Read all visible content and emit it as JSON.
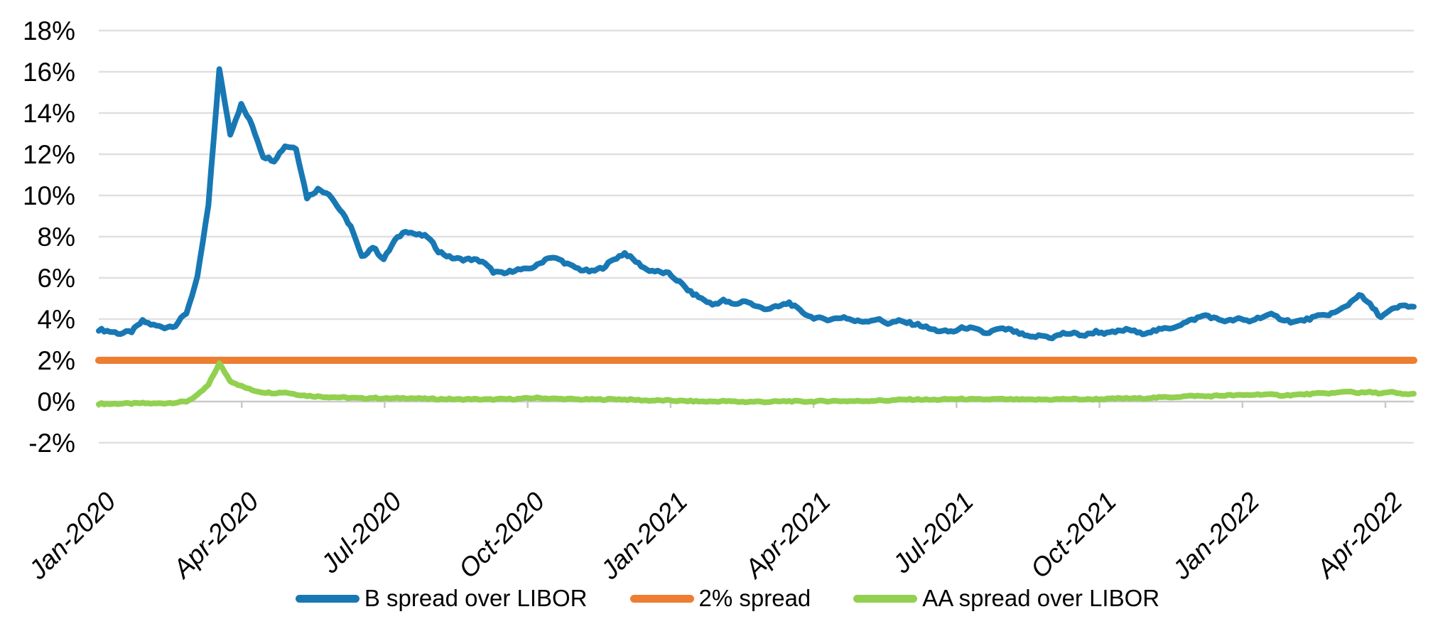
{
  "chart_data": {
    "type": "line",
    "title": "",
    "x_start": "2020-01-03",
    "x_step_days": 7,
    "x_axis": {
      "tick_labels": [
        "Jan-2020",
        "Apr-2020",
        "Jul-2020",
        "Oct-2020",
        "Jan-2021",
        "Apr-2021",
        "Jul-2021",
        "Oct-2021",
        "Jan-2022",
        "Apr-2022"
      ],
      "tick_interval_months": 3,
      "label_rotation_deg": -45,
      "label_style": "italic"
    },
    "y_axis": {
      "tick_labels": [
        "18%",
        "16%",
        "14%",
        "12%",
        "10%",
        "8%",
        "6%",
        "4%",
        "2%",
        "0%",
        "-2%"
      ],
      "min": -2,
      "max": 18,
      "step": 2,
      "format": "percent"
    },
    "grid": "horizontal",
    "legend": {
      "position": "bottom"
    },
    "series": [
      {
        "name": "B spread over LIBOR",
        "color": "#1878B4",
        "values": [
          3.5,
          3.4,
          3.3,
          3.4,
          3.9,
          3.7,
          3.6,
          3.7,
          4.3,
          6.0,
          9.5,
          16.1,
          13.0,
          14.4,
          13.4,
          11.9,
          11.7,
          12.4,
          12.3,
          9.9,
          10.3,
          10.1,
          9.3,
          8.5,
          7.0,
          7.5,
          6.9,
          7.8,
          8.3,
          8.1,
          8.0,
          7.3,
          7.0,
          6.9,
          6.9,
          6.8,
          6.3,
          6.2,
          6.4,
          6.4,
          6.6,
          7.0,
          6.9,
          6.6,
          6.4,
          6.3,
          6.5,
          6.9,
          7.2,
          6.8,
          6.4,
          6.3,
          6.2,
          5.8,
          5.3,
          5.0,
          4.7,
          4.9,
          4.7,
          4.9,
          4.6,
          4.5,
          4.6,
          4.8,
          4.4,
          4.1,
          4.0,
          4.0,
          4.1,
          3.9,
          3.9,
          4.0,
          3.8,
          3.9,
          3.8,
          3.7,
          3.5,
          3.4,
          3.4,
          3.6,
          3.5,
          3.3,
          3.5,
          3.5,
          3.3,
          3.1,
          3.2,
          3.1,
          3.3,
          3.3,
          3.2,
          3.4,
          3.3,
          3.4,
          3.5,
          3.3,
          3.4,
          3.5,
          3.6,
          3.8,
          4.0,
          4.2,
          4.0,
          3.9,
          4.0,
          3.9,
          4.1,
          4.2,
          4.0,
          3.85,
          3.95,
          4.1,
          4.2,
          4.35,
          4.7,
          5.2,
          4.7,
          4.1,
          4.45,
          4.65,
          4.6
        ]
      },
      {
        "name": "2% spread",
        "color": "#ED7D31",
        "constant": 2.0
      },
      {
        "name": "AA spread over LIBOR",
        "color": "#92D050",
        "values": [
          -0.1,
          -0.12,
          -0.1,
          -0.1,
          -0.08,
          -0.1,
          -0.08,
          -0.05,
          0.0,
          0.3,
          0.8,
          1.85,
          1.0,
          0.75,
          0.55,
          0.45,
          0.42,
          0.45,
          0.35,
          0.28,
          0.25,
          0.22,
          0.2,
          0.18,
          0.15,
          0.18,
          0.15,
          0.15,
          0.18,
          0.15,
          0.13,
          0.12,
          0.12,
          0.1,
          0.12,
          0.1,
          0.1,
          0.12,
          0.12,
          0.15,
          0.18,
          0.15,
          0.13,
          0.12,
          0.1,
          0.1,
          0.1,
          0.12,
          0.1,
          0.08,
          0.05,
          0.05,
          0.05,
          0.03,
          0.02,
          0.0,
          0.0,
          0.02,
          0.0,
          -0.02,
          0.0,
          -0.02,
          0.0,
          0.02,
          0.0,
          0.0,
          0.02,
          0.03,
          0.02,
          0.02,
          0.03,
          0.05,
          0.05,
          0.08,
          0.1,
          0.1,
          0.08,
          0.1,
          0.12,
          0.12,
          0.1,
          0.1,
          0.12,
          0.1,
          0.1,
          0.08,
          0.1,
          0.1,
          0.12,
          0.12,
          0.1,
          0.12,
          0.12,
          0.15,
          0.15,
          0.15,
          0.18,
          0.2,
          0.22,
          0.25,
          0.28,
          0.25,
          0.28,
          0.3,
          0.3,
          0.32,
          0.35,
          0.33,
          0.3,
          0.32,
          0.35,
          0.38,
          0.4,
          0.42,
          0.5,
          0.42,
          0.45,
          0.4,
          0.45,
          0.35,
          0.38
        ]
      }
    ]
  },
  "colors": {
    "background": "#FFFFFF",
    "gridline": "#E0E0E0",
    "axis_line": "#C9C9C9",
    "tick_mark": "#C9C9C9",
    "label_text": "#000000"
  }
}
